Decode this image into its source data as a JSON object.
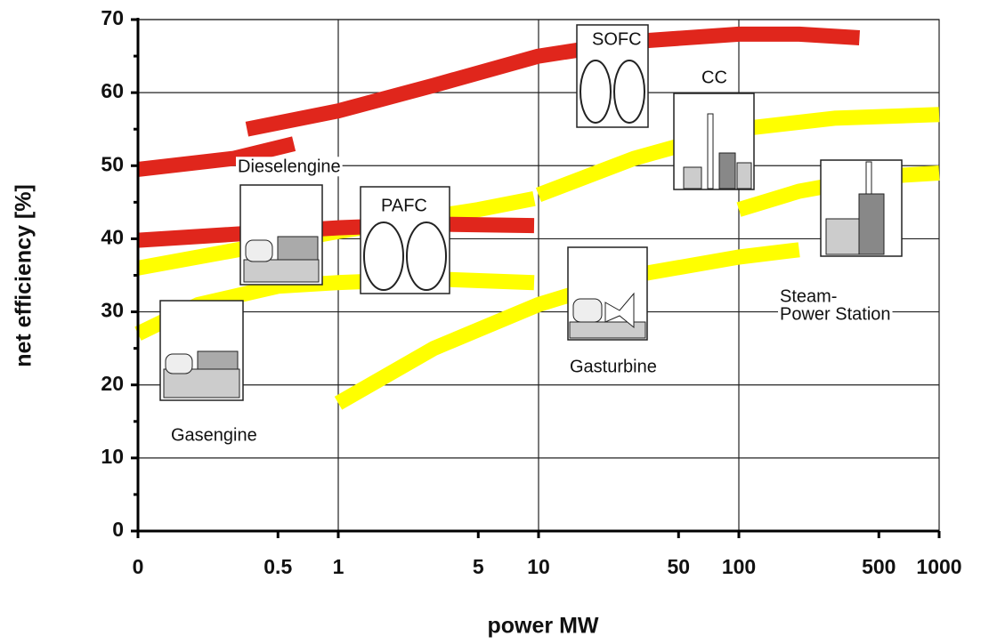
{
  "chart_data": {
    "type": "line",
    "xlabel": "power MW",
    "ylabel": "net efficiency [%]",
    "xscale": "log",
    "grid": true,
    "line_width": 17,
    "xlim": [
      0.1,
      1000
    ],
    "ylim": [
      0,
      70
    ],
    "xticks": [
      {
        "value": 0.1,
        "label": "0"
      },
      0.5,
      1,
      5,
      10,
      50,
      100,
      500,
      1000
    ],
    "yticks": [
      0,
      10,
      20,
      30,
      40,
      50,
      60,
      70
    ],
    "series": [
      {
        "color": "#ffff00",
        "x": [
          0.1,
          0.2,
          0.5,
          1,
          3,
          9.5
        ],
        "values": [
          27,
          31,
          33.5,
          34,
          34.5,
          34
        ]
      },
      {
        "color": "#ffff00",
        "x": [
          0.1,
          0.5,
          1,
          5,
          9.5
        ],
        "values": [
          36,
          39.5,
          41,
          44,
          45.5
        ]
      },
      {
        "color": "#e0261c",
        "x": [
          0.1,
          0.5,
          1,
          3,
          9.5
        ],
        "values": [
          39.8,
          41,
          41.5,
          42,
          41.8
        ]
      },
      {
        "color": "#e0261c",
        "x": [
          0.1,
          0.3,
          0.6
        ],
        "values": [
          49.5,
          51,
          53
        ]
      },
      {
        "color": "#e0261c",
        "x": [
          0.35,
          1,
          3,
          10,
          30,
          100,
          200,
          400
        ],
        "values": [
          55,
          57.5,
          61,
          65,
          67,
          68,
          68,
          67.5
        ]
      },
      {
        "color": "#ffff00",
        "x": [
          1,
          3,
          10,
          30,
          100,
          200
        ],
        "values": [
          17.5,
          25,
          31,
          35,
          37.5,
          38.5
        ]
      },
      {
        "color": "#ffff00",
        "x": [
          10,
          30,
          100,
          300,
          1000
        ],
        "values": [
          46,
          51,
          55,
          56.5,
          57
        ]
      },
      {
        "color": "#ffff00",
        "x": [
          100,
          200,
          500,
          1000
        ],
        "values": [
          44,
          46.5,
          48.5,
          49
        ]
      }
    ],
    "annotations": [
      "Gasengine",
      "Dieselengine",
      "PAFC",
      "SOFC",
      "CC",
      "Gasturbine",
      "Steam-",
      "Power Station"
    ]
  }
}
